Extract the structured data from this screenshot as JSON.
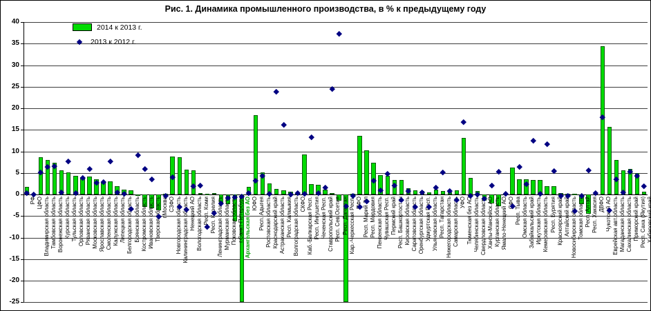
{
  "title": "Рис. 1. Динамика промышленного производства, в % к предыдущему году",
  "legend": [
    {
      "label": "2014 к 2013 г.",
      "marker": "bar"
    },
    {
      "label": "2013 к 2012 г.",
      "marker": "diamond"
    }
  ],
  "colors": {
    "bar": "#00db00",
    "bar_border": "#0a5a0a",
    "diamond": "#000082",
    "grid": "#3c3c3c",
    "highlight_label": "#00a400"
  },
  "chart_data": {
    "type": "bar",
    "title": "Рис. 1. Динамика промышленного производства, в % к предыдущему году",
    "ylabel": "%",
    "ylim": [
      -25,
      40
    ],
    "ystep": 5,
    "grid": true,
    "legend_position": "top-left",
    "series_meta": [
      {
        "name": "2014 к 2013 г.",
        "type": "bar"
      },
      {
        "name": "2013 к 2012 г.",
        "type": "scatter-diamond"
      }
    ],
    "regions": [
      {
        "name": "РФ",
        "y2014": 1.7,
        "y2013": 0.3
      },
      {
        "name": "ЦФО",
        "y2014": 0.15,
        "y2013": 0.05
      },
      {
        "name": "Владимирская область",
        "y2014": 8.6,
        "y2013": 5.1
      },
      {
        "name": "Тамбовская область",
        "y2014": 8.0,
        "y2013": 6.4
      },
      {
        "name": "Воронежская область",
        "y2014": 7.4,
        "y2013": 6.6
      },
      {
        "name": "Курская область",
        "y2014": 5.6,
        "y2013": 0.5
      },
      {
        "name": "Тульская область",
        "y2014": 5.1,
        "y2013": 7.8
      },
      {
        "name": "Орловская область",
        "y2014": 4.3,
        "y2013": 0.4
      },
      {
        "name": "Рязанская область",
        "y2014": 4.0,
        "y2013": 3.9
      },
      {
        "name": "Московская область",
        "y2014": 4.1,
        "y2013": 5.9
      },
      {
        "name": "Ярославская область",
        "y2014": 3.6,
        "y2013": 2.8
      },
      {
        "name": "Смоленская область",
        "y2014": 2.8,
        "y2013": 3.0
      },
      {
        "name": "Калужская область",
        "y2014": 3.0,
        "y2013": 7.7
      },
      {
        "name": "Липецкая область",
        "y2014": 1.9,
        "y2013": 0.45
      },
      {
        "name": "Белгородская область",
        "y2014": 1.1,
        "y2013": 0.15
      },
      {
        "name": "Брянская область",
        "y2014": 1.0,
        "y2013": -3.3
      },
      {
        "name": "Костромская область",
        "y2014": -0.3,
        "y2013": 9.1
      },
      {
        "name": "Ивановская область",
        "y2014": -2.9,
        "y2013": 5.9
      },
      {
        "name": "Тверская область",
        "y2014": -3.2,
        "y2013": 3.6
      },
      {
        "name": "г.Москва",
        "y2014": -3.6,
        "y2013": -5.1
      },
      {
        "name": "СЗФО",
        "y2014": 0.2,
        "y2013": -0.3
      },
      {
        "name": "Новгородская область",
        "y2014": 8.8,
        "y2013": 4.1
      },
      {
        "name": "Калининградская область",
        "y2014": 8.6,
        "y2013": -2.8
      },
      {
        "name": "Ненецкий АО",
        "y2014": 5.7,
        "y2013": -3.5
      },
      {
        "name": "Вологодская область",
        "y2014": 5.6,
        "y2013": 1.9
      },
      {
        "name": "Респ. Коми",
        "y2014": 0.3,
        "y2013": 2.1
      },
      {
        "name": "Респ. Карелия",
        "y2014": 0.2,
        "y2013": -7.5
      },
      {
        "name": "Ленинградская область",
        "y2014": 0.3,
        "y2013": -4.2
      },
      {
        "name": "Мурманская область",
        "y2014": -2.3,
        "y2013": -2.1
      },
      {
        "name": "Псковская область",
        "y2014": -2.2,
        "y2013": -0.7
      },
      {
        "name": "г.Санкт-Петербург",
        "y2014": -6.2,
        "y2013": -0.6
      },
      {
        "name": "Архангельская без АО",
        "y2014": -25.0,
        "y2013": -0.4,
        "green_label": true
      },
      {
        "name": "ЮФО",
        "y2014": 1.8,
        "y2013": 0.3
      },
      {
        "name": "Респ. Адыгея",
        "y2014": 18.4,
        "y2013": 3.3
      },
      {
        "name": "Ростовская область",
        "y2014": 5.1,
        "y2013": 4.4
      },
      {
        "name": "Краснодарский край",
        "y2014": 2.5,
        "y2013": 0.2
      },
      {
        "name": "Астраханская область",
        "y2014": 1.3,
        "y2013": 23.9
      },
      {
        "name": "Респ. Калмыкия",
        "y2014": 1.0,
        "y2013": 16.2
      },
      {
        "name": "Волгоградская область",
        "y2014": 0.6,
        "y2013": 0.1
      },
      {
        "name": "СКФО",
        "y2014": 0.3,
        "y2013": 0.3
      },
      {
        "name": "Каб.-Балкарская Респ.",
        "y2014": 9.3,
        "y2013": 0.2
      },
      {
        "name": "Респ. Ингушетия",
        "y2014": 2.4,
        "y2013": 13.4
      },
      {
        "name": "Чеченская Респ.",
        "y2014": 2.3,
        "y2013": 0.4
      },
      {
        "name": "Ставропольский край",
        "y2014": 1.1,
        "y2013": 1.6
      },
      {
        "name": "Респ. Сев.Осетия",
        "y2014": 0.3,
        "y2013": 24.6
      },
      {
        "name": "Респ. Дагестан",
        "y2014": -1.4,
        "y2013": 37.4
      },
      {
        "name": "Кар.-Черкесская Респ.",
        "y2014": -25.0,
        "y2013": -2.7
      },
      {
        "name": "ПФО",
        "y2014": 0.2,
        "y2013": -0.2
      },
      {
        "name": "Респ. Марий Эл",
        "y2014": 13.6,
        "y2013": -2.8
      },
      {
        "name": "Респ. Мордовия",
        "y2014": 10.2,
        "y2013": -1.6
      },
      {
        "name": "Пензенская область",
        "y2014": 7.4,
        "y2013": 3.3
      },
      {
        "name": "Чувашская Респ.",
        "y2014": 4.5,
        "y2013": 1.0
      },
      {
        "name": "Пермский край",
        "y2014": 4.4,
        "y2013": 4.8
      },
      {
        "name": "Респ. Башкортостан",
        "y2014": 3.3,
        "y2013": 2.2
      },
      {
        "name": "Кировская область",
        "y2014": 3.3,
        "y2013": -1.3
      },
      {
        "name": "Саратовская область",
        "y2014": 1.4,
        "y2013": 0.9
      },
      {
        "name": "Оренбургская область",
        "y2014": 0.95,
        "y2013": -2.8
      },
      {
        "name": "Удмуртская Респ.",
        "y2014": 0.8,
        "y2013": 0.5
      },
      {
        "name": "Ульяновская область",
        "y2014": 0.5,
        "y2013": -2.8
      },
      {
        "name": "Респ. Татарстан",
        "y2014": 1.2,
        "y2013": 1.7
      },
      {
        "name": "Нижегородская область",
        "y2014": 0.8,
        "y2013": 5.2
      },
      {
        "name": "Самарская область",
        "y2014": 0.5,
        "y2013": 0.8
      },
      {
        "name": "УФО",
        "y2014": 0.9,
        "y2013": -1.3
      },
      {
        "name": "Тюменская без АО",
        "y2014": 13.1,
        "y2013": 16.9
      },
      {
        "name": "Челябинская область",
        "y2014": 3.9,
        "y2013": -0.2
      },
      {
        "name": "Свердловская область",
        "y2014": 0.8,
        "y2013": 0.1
      },
      {
        "name": "Ханты-Мансийск.АО",
        "y2014": -1.4,
        "y2013": -0.9
      },
      {
        "name": "Курганская область",
        "y2014": -2.1,
        "y2013": 2.2
      },
      {
        "name": "Ямало-Ненецкий АО",
        "y2014": -2.7,
        "y2013": 5.4
      },
      {
        "name": "СФО",
        "y2014": 0.2,
        "y2013": 0.2
      },
      {
        "name": "Респ. Тыва",
        "y2014": 6.2,
        "y2013": -2.7
      },
      {
        "name": "Омская область",
        "y2014": 3.6,
        "y2013": 6.5
      },
      {
        "name": "Забайкальский край",
        "y2014": 3.5,
        "y2013": 2.5
      },
      {
        "name": "Иркутская область",
        "y2014": 3.3,
        "y2013": 12.5
      },
      {
        "name": "Кемеровская область",
        "y2014": 3.3,
        "y2013": 0.2
      },
      {
        "name": "Респ. Бурятия",
        "y2014": 2.0,
        "y2013": 11.7
      },
      {
        "name": "Красноярский край",
        "y2014": 1.9,
        "y2013": 5.5
      },
      {
        "name": "Алтайский край",
        "y2014": 0.4,
        "y2013": -0.2
      },
      {
        "name": "Новосибирская область",
        "y2014": 0.2,
        "y2013": -0.2
      },
      {
        "name": "Томская область",
        "y2014": 0.1,
        "y2013": -3.8
      },
      {
        "name": "Респ. Алтай",
        "y2014": -2.2,
        "y2013": -0.2
      },
      {
        "name": "Респ. Хакасия",
        "y2014": -4.5,
        "y2013": 5.6
      },
      {
        "name": "ДВФО",
        "y2014": 0.3,
        "y2013": 0.3
      },
      {
        "name": "Чукотский АО",
        "y2014": 34.4,
        "y2013": 18.0
      },
      {
        "name": "Еврейская авт.область",
        "y2014": 15.7,
        "y2013": -3.6
      },
      {
        "name": "Магаданская область",
        "y2014": 8.0,
        "y2013": 3.6
      },
      {
        "name": "Сахалинская область",
        "y2014": 5.6,
        "y2013": 0.6
      },
      {
        "name": "Приморский край",
        "y2014": 5.9,
        "y2013": 5.4
      },
      {
        "name": "Респ. Саха (Якутия)",
        "y2014": 4.9,
        "y2013": 4.4
      },
      {
        "name": "Хабаровский край",
        "y2014": 0.7,
        "y2013": 1.9
      }
    ]
  }
}
